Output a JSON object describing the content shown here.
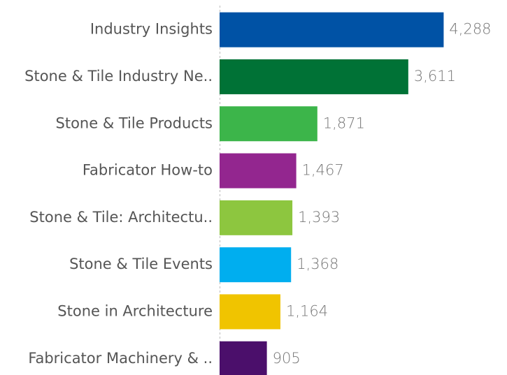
{
  "chart_data": {
    "type": "bar",
    "orientation": "horizontal",
    "categories": [
      "Industry Insights",
      "Stone & Tile Industry Ne..",
      "Stone & Tile Products",
      "Fabricator How-to",
      "Stone & Tile: Architectu..",
      "Stone & Tile Events",
      "Stone in Architecture",
      "Fabricator Machinery & .."
    ],
    "values": [
      4288,
      3611,
      1871,
      1467,
      1393,
      1368,
      1164,
      905
    ],
    "value_labels": [
      "4,288",
      "3,611",
      "1,871",
      "1,467",
      "1,393",
      "1,368",
      "1,164",
      "905"
    ],
    "colors": [
      "#0052a5",
      "#007236",
      "#3cb54a",
      "#93268f",
      "#8dc63f",
      "#00aeef",
      "#f0c400",
      "#4b0f6b"
    ],
    "xlim": [
      0,
      5500
    ]
  }
}
